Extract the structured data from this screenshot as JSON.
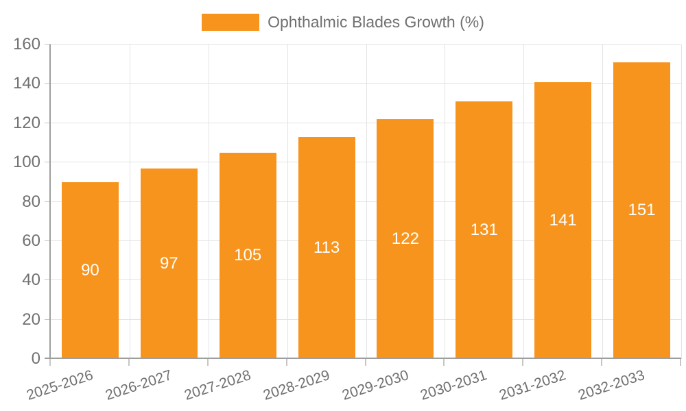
{
  "chart_data": {
    "type": "bar",
    "title": "Ophthalmic Blades Growth (%)",
    "legend_position": "top",
    "grid": true,
    "categories": [
      "2025-2026",
      "2026-2027",
      "2027-2028",
      "2028-2029",
      "2029-2030",
      "2030-2031",
      "2031-2032",
      "2032-2033"
    ],
    "series": [
      {
        "name": "Ophthalmic Blades Growth (%)",
        "values": [
          90,
          97,
          105,
          113,
          122,
          131,
          141,
          151
        ]
      }
    ],
    "values": [
      90,
      97,
      105,
      113,
      122,
      131,
      141,
      151
    ],
    "value_labels": [
      "90",
      "97",
      "105",
      "113",
      "122",
      "131",
      "141",
      "151"
    ],
    "xlabel": "",
    "ylabel": "",
    "ylim": [
      0,
      160
    ],
    "y_step": 20,
    "y_ticks": [
      0,
      20,
      40,
      60,
      80,
      100,
      120,
      140,
      160
    ],
    "colors": {
      "bar": "#f7941e",
      "value_label": "#ffffff",
      "axis_text": "#707070",
      "axis_line": "#9e9e9e",
      "gridline": "#e3e3e3",
      "tick_mark": "#c6c6c6"
    }
  }
}
